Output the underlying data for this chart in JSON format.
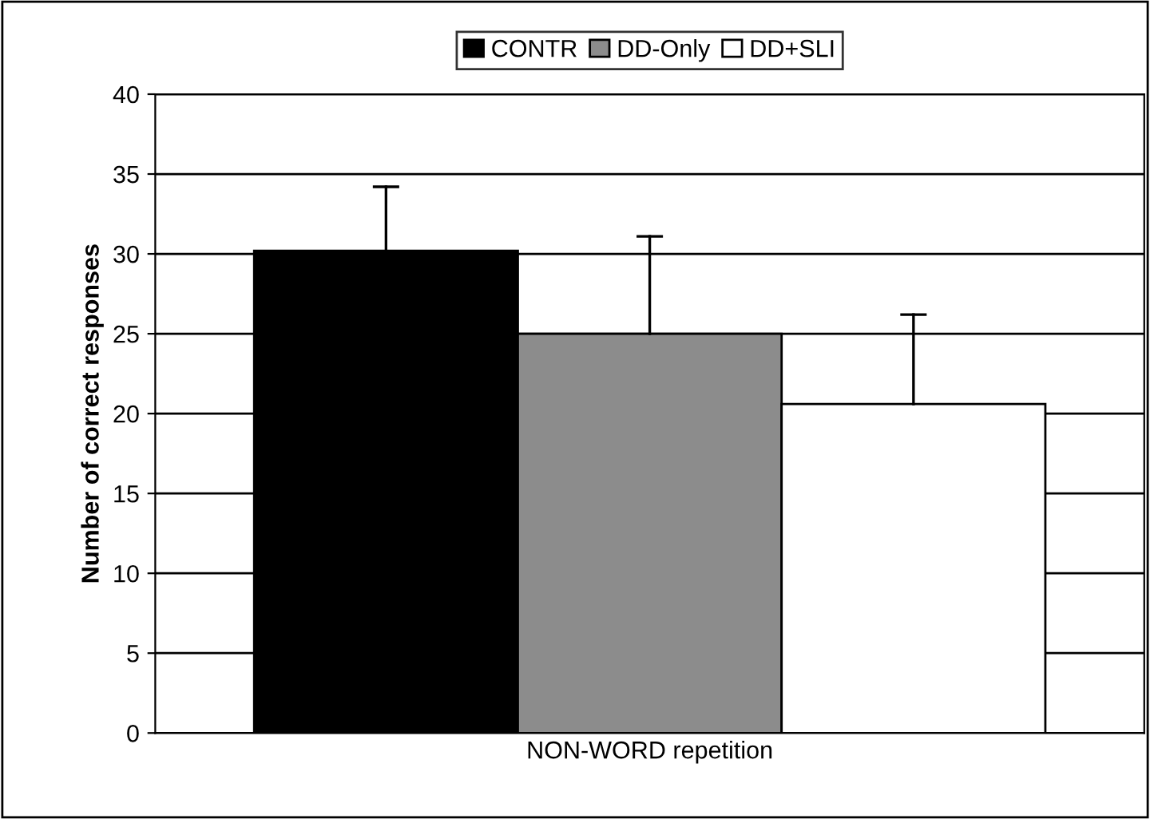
{
  "chart_data": {
    "type": "bar",
    "categories": [
      "NON-WORD repetition"
    ],
    "ylabel": "Number of correct responses",
    "series": [
      {
        "name": "CONTR",
        "color": "#000000",
        "values": [
          30.2
        ],
        "errors": [
          [
            30.2,
            34.2
          ]
        ]
      },
      {
        "name": "DD-Only",
        "color": "#8c8c8c",
        "values": [
          25.0
        ],
        "errors": [
          [
            25.0,
            31.1
          ]
        ]
      },
      {
        "name": "DD+SLI",
        "color": "#ffffff",
        "values": [
          20.6
        ],
        "errors": [
          [
            20.6,
            26.2
          ]
        ]
      }
    ],
    "ylim": [
      0,
      40
    ],
    "yticks": [
      0,
      5,
      10,
      15,
      20,
      25,
      30,
      35,
      40
    ],
    "grid": "y",
    "legend": "top"
  }
}
